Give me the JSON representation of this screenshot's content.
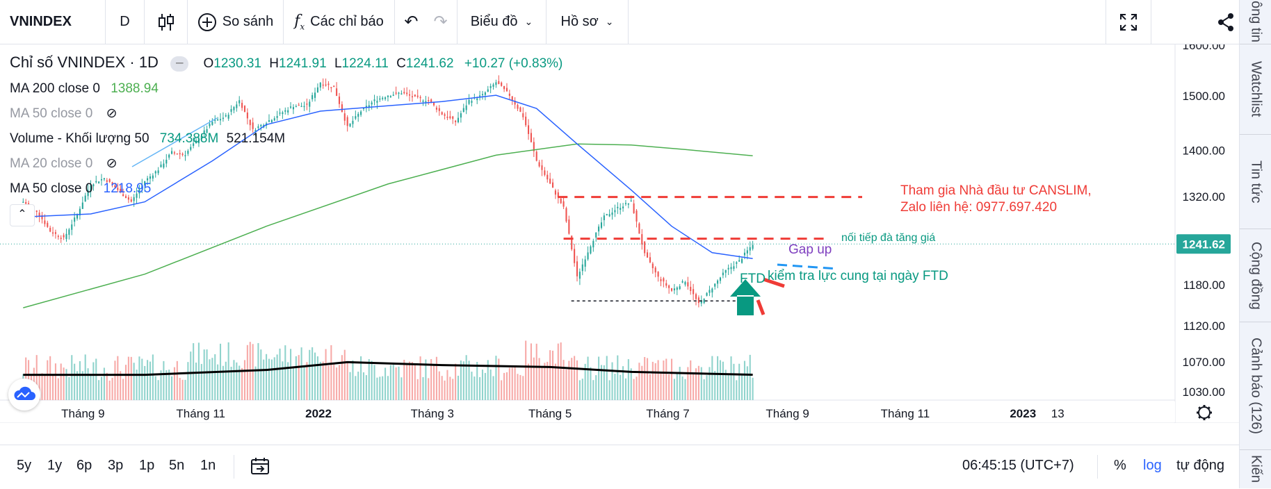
{
  "toolbar": {
    "symbol": "VNINDEX",
    "interval": "D",
    "compare_label": "So sánh",
    "indicators_label": "Các chỉ báo",
    "chart_type_label": "Biểu đồ",
    "profile_label": "Hồ sơ"
  },
  "legend": {
    "title": "Chỉ số VNINDEX · 1D",
    "o_label": "O",
    "o": "1230.31",
    "h_label": "H",
    "h": "1241.91",
    "l_label": "L",
    "l": "1224.11",
    "c_label": "C",
    "c": "1241.62",
    "change": "+10.27 (+0.83%)",
    "ma200_label": "MA 200 close 0",
    "ma200_value": "1388.94",
    "ma50a_label": "MA 50 close 0",
    "volume_label": "Volume - Khối lượng 50",
    "volume_value": "734.388M",
    "volume_ma": "521.154M",
    "ma20_label": "MA 20 close 0",
    "ma50b_label": "MA 50 close 0",
    "ma50b_value": "1218.95"
  },
  "annotations": {
    "canslim": "Tham gia Nhà đầu tư CANSLIM,",
    "zalo": "Zalo liên hệ: 0977.697.420",
    "continue_trend": "nối tiếp đà tăng giá",
    "gap_up": "Gap up",
    "ftd": "FTD",
    "ftd_check": "kiểm tra lực cung tại ngày FTD"
  },
  "bottom": {
    "ranges": [
      "5y",
      "1y",
      "6p",
      "3p",
      "1p",
      "5n",
      "1n"
    ],
    "time": "06:45:15 (UTC+7)",
    "percent": "%",
    "log": "log",
    "auto": "tự động"
  },
  "sidebar": {
    "tabs": [
      "ông tin",
      "Watchlist",
      "Tin tức",
      "Cộng đồng",
      "Cảnh báo (126)",
      "Kiến"
    ]
  },
  "colors": {
    "up": "#26a69a",
    "down": "#ef5350",
    "ma50": "#2962ff",
    "ma200": "#4caf50",
    "annotation_red": "#ef3b36",
    "annotation_teal": "#089981",
    "annotation_purple": "#7e3fbf"
  },
  "chart_data": {
    "type": "candlestick",
    "x_axis_labels": [
      "Tháng 9",
      "Tháng 11",
      "2022",
      "Tháng 3",
      "Tháng 5",
      "Tháng 7",
      "Tháng 9",
      "Tháng 11",
      "2023",
      "13"
    ],
    "y_axis_labels": [
      "1600.00",
      "1500.00",
      "1400.00",
      "1320.00",
      "1241.62",
      "1180.00",
      "1120.00",
      "1070.00",
      "1030.00"
    ],
    "scale": "log",
    "last_price": "1241.62",
    "price_path": [
      [
        "2021-08-01",
        1310
      ],
      [
        "2021-08-08",
        1295
      ],
      [
        "2021-08-15",
        1262
      ],
      [
        "2021-08-22",
        1250
      ],
      [
        "2021-08-29",
        1290
      ],
      [
        "2021-09-05",
        1340
      ],
      [
        "2021-09-12",
        1350
      ],
      [
        "2021-09-19",
        1330
      ],
      [
        "2021-09-26",
        1310
      ],
      [
        "2021-10-03",
        1345
      ],
      [
        "2021-10-10",
        1365
      ],
      [
        "2021-10-17",
        1395
      ],
      [
        "2021-10-24",
        1392
      ],
      [
        "2021-10-31",
        1420
      ],
      [
        "2021-11-07",
        1450
      ],
      [
        "2021-11-14",
        1460
      ],
      [
        "2021-11-21",
        1490
      ],
      [
        "2021-11-28",
        1435
      ],
      [
        "2021-12-05",
        1450
      ],
      [
        "2021-12-12",
        1465
      ],
      [
        "2021-12-19",
        1480
      ],
      [
        "2021-12-26",
        1480
      ],
      [
        "2022-01-02",
        1525
      ],
      [
        "2022-01-09",
        1515
      ],
      [
        "2022-01-16",
        1440
      ],
      [
        "2022-01-23",
        1470
      ],
      [
        "2022-01-30",
        1490
      ],
      [
        "2022-02-06",
        1500
      ],
      [
        "2022-02-13",
        1505
      ],
      [
        "2022-02-20",
        1495
      ],
      [
        "2022-02-27",
        1490
      ],
      [
        "2022-03-06",
        1465
      ],
      [
        "2022-03-13",
        1450
      ],
      [
        "2022-03-20",
        1490
      ],
      [
        "2022-03-27",
        1500
      ],
      [
        "2022-04-03",
        1525
      ],
      [
        "2022-04-10",
        1500
      ],
      [
        "2022-04-17",
        1460
      ],
      [
        "2022-04-24",
        1380
      ],
      [
        "2022-05-01",
        1340
      ],
      [
        "2022-05-08",
        1300
      ],
      [
        "2022-05-15",
        1190
      ],
      [
        "2022-05-22",
        1240
      ],
      [
        "2022-05-29",
        1285
      ],
      [
        "2022-06-05",
        1300
      ],
      [
        "2022-06-12",
        1310
      ],
      [
        "2022-06-19",
        1225
      ],
      [
        "2022-06-26",
        1190
      ],
      [
        "2022-07-03",
        1170
      ],
      [
        "2022-07-10",
        1185
      ],
      [
        "2022-07-17",
        1150
      ],
      [
        "2022-07-24",
        1175
      ],
      [
        "2022-07-31",
        1200
      ],
      [
        "2022-08-07",
        1215
      ],
      [
        "2022-08-14",
        1241.62
      ]
    ],
    "ma50_path": [
      [
        "2021-08-01",
        1285
      ],
      [
        "2021-09-05",
        1290
      ],
      [
        "2021-10-03",
        1310
      ],
      [
        "2021-11-07",
        1380
      ],
      [
        "2021-12-05",
        1445
      ],
      [
        "2022-01-02",
        1470
      ],
      [
        "2022-02-06",
        1480
      ],
      [
        "2022-03-06",
        1488
      ],
      [
        "2022-04-03",
        1500
      ],
      [
        "2022-04-24",
        1475
      ],
      [
        "2022-05-15",
        1410
      ],
      [
        "2022-06-12",
        1330
      ],
      [
        "2022-07-03",
        1270
      ],
      [
        "2022-07-24",
        1228
      ],
      [
        "2022-08-14",
        1218.95
      ]
    ],
    "ma200_path": [
      [
        "2021-08-01",
        1145
      ],
      [
        "2021-10-03",
        1195
      ],
      [
        "2021-12-05",
        1270
      ],
      [
        "2022-02-06",
        1340
      ],
      [
        "2022-04-03",
        1390
      ],
      [
        "2022-05-15",
        1410
      ],
      [
        "2022-06-12",
        1408
      ],
      [
        "2022-07-10",
        1400
      ],
      [
        "2022-08-14",
        1388.94
      ]
    ],
    "volume_ma_path": [
      [
        "2021-08-01",
        0.52
      ],
      [
        "2021-10-03",
        0.52
      ],
      [
        "2021-12-05",
        0.62
      ],
      [
        "2022-01-16",
        0.78
      ],
      [
        "2022-03-06",
        0.72
      ],
      [
        "2022-05-01",
        0.68
      ],
      [
        "2022-06-12",
        0.58
      ],
      [
        "2022-08-14",
        0.521
      ]
    ],
    "resistance_levels": [
      1318,
      1250
    ],
    "support_level": 1155
  }
}
